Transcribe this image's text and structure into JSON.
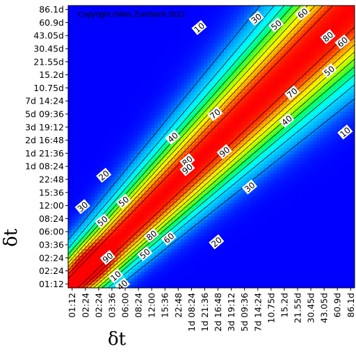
{
  "chart_data": {
    "type": "heatmap",
    "annotation": "Copyright Gilles Zumbach 2012",
    "xlabel": "δt",
    "ylabel": "δt",
    "xticks": [
      "01:12",
      "02:24",
      "02:24",
      "03:36",
      "06:00",
      "08:24",
      "12:00",
      "15:36",
      "22:48",
      "1d 08:24",
      "1d 21:36",
      "2d 16:48",
      "3d 19:12",
      "5d 09:36",
      "7d 14:24",
      "10.75d",
      "15.2d",
      "21.55d",
      "30.45d",
      "43.05d",
      "60.9d",
      "86.1d"
    ],
    "yticks": [
      "01:12",
      "02:24",
      "02:24",
      "03:36",
      "06:00",
      "08:24",
      "12:00",
      "15:36",
      "22:48",
      "1d 08:24",
      "1d 21:36",
      "2d 16:48",
      "3d 19:12",
      "5d 09:36",
      "7d 14:24",
      "10.75d",
      "15.2d",
      "21.55d",
      "30.45d",
      "43.05d",
      "60.9d",
      "86.1d"
    ],
    "contour_levels": [
      10,
      20,
      30,
      40,
      50,
      60,
      70,
      80,
      90
    ],
    "value_range": [
      0,
      100
    ],
    "colormap": [
      "#0000ff",
      "#00aaff",
      "#00ffff",
      "#00ff66",
      "#88ff00",
      "#ffff00",
      "#ffaa00",
      "#ff3300",
      "#ff0000"
    ],
    "contour_labels": [
      {
        "text": "10",
        "x": 9.6,
        "y": 19.6
      },
      {
        "text": "30",
        "x": 13.9,
        "y": 20.3
      },
      {
        "text": "50",
        "x": 15.4,
        "y": 19.8
      },
      {
        "text": "60",
        "x": 17.4,
        "y": 20.7
      },
      {
        "text": "80",
        "x": 19.3,
        "y": 18.9
      },
      {
        "text": "60",
        "x": 20.4,
        "y": 18.5
      },
      {
        "text": "50",
        "x": 19.4,
        "y": 16.3
      },
      {
        "text": "70",
        "x": 16.6,
        "y": 14.6
      },
      {
        "text": "40",
        "x": 16.2,
        "y": 12.5
      },
      {
        "text": "10",
        "x": 20.6,
        "y": 11.6
      },
      {
        "text": "70",
        "x": 10.8,
        "y": 13.0
      },
      {
        "text": "40",
        "x": 7.6,
        "y": 11.2
      },
      {
        "text": "90",
        "x": 11.5,
        "y": 10.1
      },
      {
        "text": "80",
        "x": 8.7,
        "y": 9.4
      },
      {
        "text": "90",
        "x": 8.7,
        "y": 8.8
      },
      {
        "text": "20",
        "x": 2.4,
        "y": 8.3
      },
      {
        "text": "30",
        "x": 13.4,
        "y": 7.4
      },
      {
        "text": "50",
        "x": 3.9,
        "y": 6.3
      },
      {
        "text": "30",
        "x": 0.8,
        "y": 5.9
      },
      {
        "text": "50",
        "x": 2.3,
        "y": 4.8
      },
      {
        "text": "80",
        "x": 6.0,
        "y": 3.7
      },
      {
        "text": "60",
        "x": 7.3,
        "y": 3.5
      },
      {
        "text": "20",
        "x": 10.9,
        "y": 3.2
      },
      {
        "text": "50",
        "x": 5.5,
        "y": 2.3
      },
      {
        "text": "90",
        "x": 2.7,
        "y": 2.0
      },
      {
        "text": "10",
        "x": 3.3,
        "y": 0.6
      },
      {
        "text": "40",
        "x": 3.8,
        "y": -0.1
      }
    ]
  }
}
